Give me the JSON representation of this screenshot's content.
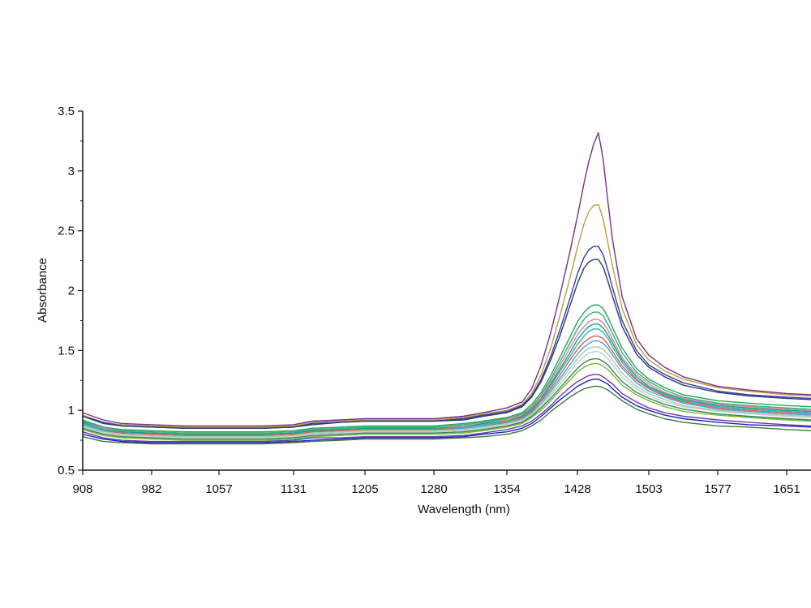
{
  "chart_data": {
    "type": "line",
    "title": "",
    "xlabel": "Wavelength (nm)",
    "ylabel": "Absorbance",
    "xlim": [
      908,
      1700
    ],
    "ylim": [
      0.5,
      3.5
    ],
    "x_ticks": [
      908,
      982,
      1057,
      1131,
      1205,
      1280,
      1354,
      1428,
      1503,
      1577,
      1651
    ],
    "y_ticks": [
      0.5,
      1,
      1.5,
      2,
      2.5,
      3,
      3.5
    ],
    "y_tick_labels": [
      "0.5",
      "1",
      "1.5",
      "2",
      "2.5",
      "3",
      "3.5"
    ],
    "grid": false,
    "legend": "none",
    "x": [
      908,
      930,
      950,
      982,
      1020,
      1057,
      1100,
      1131,
      1150,
      1180,
      1205,
      1240,
      1280,
      1310,
      1330,
      1354,
      1370,
      1380,
      1390,
      1400,
      1410,
      1420,
      1428,
      1435,
      1440,
      1445,
      1450,
      1455,
      1460,
      1465,
      1475,
      1490,
      1503,
      1520,
      1540,
      1577,
      1610,
      1651,
      1700
    ],
    "series": [
      {
        "color": "#7b2e8c",
        "values": [
          0.98,
          0.92,
          0.89,
          0.88,
          0.87,
          0.87,
          0.87,
          0.88,
          0.91,
          0.92,
          0.93,
          0.93,
          0.93,
          0.95,
          0.98,
          1.02,
          1.07,
          1.18,
          1.38,
          1.65,
          1.97,
          2.32,
          2.62,
          2.9,
          3.08,
          3.22,
          3.32,
          3.1,
          2.75,
          2.42,
          1.95,
          1.6,
          1.46,
          1.36,
          1.28,
          1.2,
          1.17,
          1.14,
          1.13
        ]
      },
      {
        "color": "#b5a33a",
        "values": [
          0.96,
          0.9,
          0.88,
          0.87,
          0.86,
          0.86,
          0.86,
          0.87,
          0.9,
          0.91,
          0.92,
          0.92,
          0.92,
          0.94,
          0.97,
          1.0,
          1.05,
          1.14,
          1.3,
          1.52,
          1.8,
          2.1,
          2.36,
          2.56,
          2.66,
          2.71,
          2.72,
          2.6,
          2.4,
          2.2,
          1.85,
          1.55,
          1.42,
          1.33,
          1.26,
          1.19,
          1.16,
          1.13,
          1.12
        ]
      },
      {
        "color": "#3a3aa8",
        "values": [
          0.95,
          0.9,
          0.87,
          0.86,
          0.85,
          0.85,
          0.85,
          0.86,
          0.89,
          0.9,
          0.91,
          0.91,
          0.91,
          0.93,
          0.96,
          0.99,
          1.04,
          1.12,
          1.26,
          1.45,
          1.68,
          1.93,
          2.14,
          2.28,
          2.34,
          2.37,
          2.37,
          2.3,
          2.17,
          2.02,
          1.75,
          1.5,
          1.38,
          1.3,
          1.23,
          1.16,
          1.13,
          1.11,
          1.1
        ]
      },
      {
        "color": "#2a3a6e",
        "values": [
          0.95,
          0.89,
          0.87,
          0.86,
          0.85,
          0.85,
          0.85,
          0.86,
          0.88,
          0.9,
          0.91,
          0.91,
          0.91,
          0.92,
          0.95,
          0.98,
          1.03,
          1.11,
          1.24,
          1.42,
          1.63,
          1.87,
          2.06,
          2.19,
          2.24,
          2.26,
          2.26,
          2.2,
          2.08,
          1.95,
          1.7,
          1.47,
          1.36,
          1.28,
          1.21,
          1.15,
          1.12,
          1.1,
          1.09
        ]
      },
      {
        "color": "#1faa50",
        "values": [
          0.92,
          0.86,
          0.84,
          0.83,
          0.82,
          0.82,
          0.82,
          0.83,
          0.85,
          0.86,
          0.87,
          0.87,
          0.87,
          0.89,
          0.91,
          0.94,
          0.98,
          1.05,
          1.15,
          1.29,
          1.45,
          1.61,
          1.74,
          1.82,
          1.86,
          1.88,
          1.88,
          1.85,
          1.78,
          1.69,
          1.52,
          1.35,
          1.26,
          1.19,
          1.13,
          1.08,
          1.06,
          1.04,
          1.03
        ]
      },
      {
        "color": "#34b07a",
        "values": [
          0.91,
          0.85,
          0.83,
          0.82,
          0.81,
          0.81,
          0.81,
          0.82,
          0.84,
          0.85,
          0.86,
          0.86,
          0.86,
          0.88,
          0.9,
          0.93,
          0.97,
          1.03,
          1.13,
          1.26,
          1.41,
          1.56,
          1.68,
          1.76,
          1.8,
          1.82,
          1.82,
          1.79,
          1.72,
          1.64,
          1.48,
          1.32,
          1.24,
          1.17,
          1.11,
          1.06,
          1.04,
          1.02,
          1.01
        ]
      },
      {
        "color": "#ee7ba0",
        "values": [
          0.9,
          0.85,
          0.82,
          0.81,
          0.8,
          0.8,
          0.8,
          0.81,
          0.83,
          0.84,
          0.85,
          0.85,
          0.85,
          0.87,
          0.89,
          0.92,
          0.96,
          1.02,
          1.12,
          1.24,
          1.38,
          1.52,
          1.63,
          1.7,
          1.74,
          1.76,
          1.76,
          1.73,
          1.67,
          1.59,
          1.44,
          1.3,
          1.22,
          1.15,
          1.1,
          1.05,
          1.03,
          1.01,
          1.0
        ]
      },
      {
        "color": "#14a08c",
        "values": [
          0.9,
          0.84,
          0.82,
          0.81,
          0.8,
          0.8,
          0.8,
          0.81,
          0.83,
          0.84,
          0.85,
          0.85,
          0.85,
          0.86,
          0.89,
          0.91,
          0.95,
          1.01,
          1.1,
          1.22,
          1.35,
          1.48,
          1.59,
          1.66,
          1.7,
          1.72,
          1.72,
          1.69,
          1.63,
          1.56,
          1.42,
          1.28,
          1.2,
          1.14,
          1.09,
          1.04,
          1.02,
          1.0,
          0.99
        ]
      },
      {
        "color": "#2cb8b0",
        "values": [
          0.89,
          0.84,
          0.81,
          0.8,
          0.79,
          0.79,
          0.79,
          0.8,
          0.82,
          0.83,
          0.84,
          0.84,
          0.84,
          0.86,
          0.88,
          0.91,
          0.94,
          1.0,
          1.09,
          1.2,
          1.33,
          1.45,
          1.55,
          1.62,
          1.66,
          1.68,
          1.68,
          1.65,
          1.6,
          1.53,
          1.4,
          1.26,
          1.19,
          1.13,
          1.08,
          1.03,
          1.01,
          0.99,
          0.98
        ]
      },
      {
        "color": "#e0604a",
        "values": [
          0.88,
          0.83,
          0.81,
          0.8,
          0.79,
          0.79,
          0.79,
          0.8,
          0.82,
          0.83,
          0.84,
          0.84,
          0.84,
          0.85,
          0.87,
          0.9,
          0.94,
          0.99,
          1.08,
          1.18,
          1.3,
          1.42,
          1.51,
          1.57,
          1.6,
          1.62,
          1.62,
          1.6,
          1.55,
          1.49,
          1.37,
          1.25,
          1.18,
          1.12,
          1.07,
          1.02,
          1.0,
          0.98,
          0.97
        ]
      },
      {
        "color": "#4aa3e0",
        "values": [
          0.88,
          0.83,
          0.8,
          0.79,
          0.78,
          0.78,
          0.78,
          0.79,
          0.81,
          0.82,
          0.83,
          0.83,
          0.83,
          0.85,
          0.87,
          0.89,
          0.93,
          0.98,
          1.06,
          1.16,
          1.27,
          1.38,
          1.47,
          1.53,
          1.56,
          1.58,
          1.58,
          1.56,
          1.52,
          1.46,
          1.35,
          1.23,
          1.16,
          1.11,
          1.06,
          1.01,
          0.99,
          0.97,
          0.96
        ]
      },
      {
        "color": "#a0d0a0",
        "values": [
          0.87,
          0.82,
          0.8,
          0.79,
          0.78,
          0.78,
          0.78,
          0.79,
          0.81,
          0.82,
          0.83,
          0.83,
          0.83,
          0.84,
          0.86,
          0.89,
          0.92,
          0.97,
          1.05,
          1.14,
          1.25,
          1.35,
          1.43,
          1.49,
          1.52,
          1.53,
          1.53,
          1.51,
          1.47,
          1.42,
          1.31,
          1.2,
          1.14,
          1.09,
          1.04,
          1.0,
          0.98,
          0.96,
          0.95
        ]
      },
      {
        "color": "#c8c8d8",
        "values": [
          0.86,
          0.81,
          0.79,
          0.78,
          0.77,
          0.77,
          0.77,
          0.78,
          0.8,
          0.81,
          0.82,
          0.82,
          0.82,
          0.83,
          0.85,
          0.88,
          0.91,
          0.96,
          1.03,
          1.12,
          1.22,
          1.32,
          1.4,
          1.45,
          1.48,
          1.49,
          1.49,
          1.47,
          1.43,
          1.38,
          1.28,
          1.18,
          1.12,
          1.07,
          1.03,
          0.99,
          0.97,
          0.95,
          0.94
        ]
      },
      {
        "color": "#2e8b57",
        "values": [
          0.85,
          0.8,
          0.78,
          0.77,
          0.76,
          0.76,
          0.76,
          0.77,
          0.79,
          0.8,
          0.81,
          0.81,
          0.81,
          0.82,
          0.84,
          0.87,
          0.9,
          0.95,
          1.02,
          1.1,
          1.19,
          1.28,
          1.35,
          1.4,
          1.42,
          1.43,
          1.43,
          1.41,
          1.38,
          1.33,
          1.24,
          1.15,
          1.1,
          1.05,
          1.01,
          0.97,
          0.95,
          0.93,
          0.92
        ]
      },
      {
        "color": "#7ab830",
        "values": [
          0.84,
          0.79,
          0.77,
          0.76,
          0.75,
          0.75,
          0.75,
          0.76,
          0.78,
          0.79,
          0.8,
          0.8,
          0.8,
          0.81,
          0.83,
          0.86,
          0.89,
          0.94,
          1.0,
          1.08,
          1.17,
          1.25,
          1.32,
          1.36,
          1.38,
          1.39,
          1.39,
          1.37,
          1.34,
          1.3,
          1.21,
          1.13,
          1.08,
          1.03,
          0.99,
          0.96,
          0.94,
          0.92,
          0.91
        ]
      },
      {
        "color": "#6a3ab0",
        "values": [
          0.82,
          0.77,
          0.75,
          0.74,
          0.74,
          0.74,
          0.74,
          0.75,
          0.77,
          0.77,
          0.78,
          0.78,
          0.78,
          0.79,
          0.81,
          0.84,
          0.87,
          0.91,
          0.97,
          1.04,
          1.12,
          1.19,
          1.24,
          1.27,
          1.29,
          1.3,
          1.3,
          1.28,
          1.25,
          1.22,
          1.14,
          1.07,
          1.02,
          0.98,
          0.95,
          0.92,
          0.9,
          0.88,
          0.87
        ]
      },
      {
        "color": "#2020c0",
        "values": [
          0.8,
          0.76,
          0.74,
          0.73,
          0.73,
          0.73,
          0.73,
          0.74,
          0.75,
          0.76,
          0.77,
          0.77,
          0.77,
          0.78,
          0.8,
          0.82,
          0.85,
          0.89,
          0.95,
          1.02,
          1.09,
          1.15,
          1.2,
          1.23,
          1.25,
          1.26,
          1.26,
          1.24,
          1.22,
          1.18,
          1.11,
          1.04,
          1.0,
          0.96,
          0.93,
          0.9,
          0.88,
          0.87,
          0.86
        ]
      },
      {
        "color": "#3a7a3a",
        "values": [
          0.78,
          0.74,
          0.73,
          0.72,
          0.72,
          0.72,
          0.72,
          0.73,
          0.74,
          0.75,
          0.76,
          0.76,
          0.76,
          0.77,
          0.78,
          0.8,
          0.83,
          0.87,
          0.92,
          0.99,
          1.05,
          1.11,
          1.15,
          1.18,
          1.19,
          1.2,
          1.2,
          1.19,
          1.17,
          1.14,
          1.08,
          1.01,
          0.97,
          0.93,
          0.9,
          0.87,
          0.86,
          0.84,
          0.83
        ]
      }
    ]
  }
}
